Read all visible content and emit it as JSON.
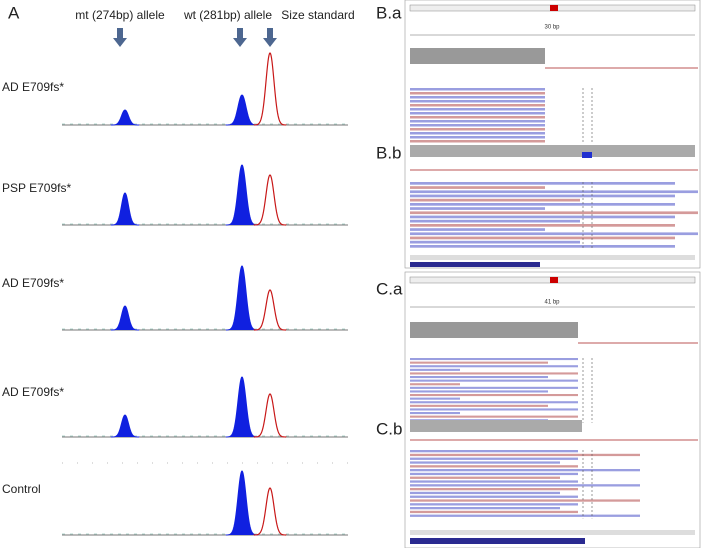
{
  "panel_a": {
    "label": "A",
    "markers": [
      "mt (274bp) allele",
      "wt (281bp) allele",
      "Size standard"
    ],
    "traces": [
      "AD E709fs*",
      "PSP E709fs*",
      "AD E709fs*",
      "AD E709fs*",
      "Control"
    ]
  },
  "panel_b": {
    "label_a": "B.a",
    "label_b": "B.b",
    "scale": "30 bp"
  },
  "panel_c": {
    "label_a": "C.a",
    "label_b": "C.b",
    "scale": "41 bp"
  }
}
